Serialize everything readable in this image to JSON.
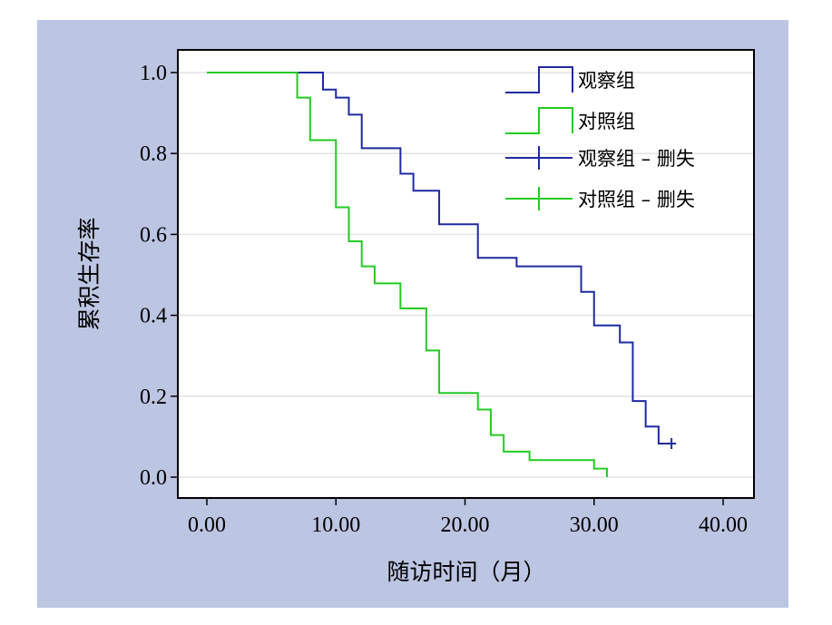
{
  "chart_data": {
    "type": "line",
    "subtype": "kaplan-meier",
    "title": "",
    "xlabel": "随访时间（月）",
    "ylabel": "累积生存率",
    "xlim": [
      0,
      40
    ],
    "ylim": [
      0,
      1
    ],
    "x_ticks": [
      "0.00",
      "10.00",
      "20.00",
      "30.00",
      "40.00"
    ],
    "y_ticks": [
      "0.0",
      "0.2",
      "0.4",
      "0.6",
      "0.8",
      "1.0"
    ],
    "grid": "horizontal",
    "legend_position": "top-right",
    "series": [
      {
        "name": "观察组",
        "color": "#1f2aa0",
        "steps": [
          [
            0,
            1.0
          ],
          [
            9,
            0.958
          ],
          [
            10,
            0.938
          ],
          [
            11,
            0.896
          ],
          [
            12,
            0.813
          ],
          [
            15,
            0.75
          ],
          [
            16,
            0.708
          ],
          [
            18,
            0.625
          ],
          [
            21,
            0.542
          ],
          [
            24,
            0.521
          ],
          [
            29,
            0.458
          ],
          [
            30,
            0.375
          ],
          [
            32,
            0.333
          ],
          [
            33,
            0.188
          ],
          [
            34,
            0.125
          ],
          [
            35,
            0.083
          ]
        ],
        "end_x": 36,
        "censored": [
          [
            36,
            0.083
          ]
        ]
      },
      {
        "name": "对照组",
        "color": "#22cc22",
        "steps": [
          [
            0,
            1.0
          ],
          [
            7,
            0.938
          ],
          [
            8,
            0.833
          ],
          [
            10,
            0.667
          ],
          [
            11,
            0.583
          ],
          [
            12,
            0.521
          ],
          [
            13,
            0.479
          ],
          [
            15,
            0.417
          ],
          [
            17,
            0.313
          ],
          [
            18,
            0.208
          ],
          [
            21,
            0.167
          ],
          [
            22,
            0.104
          ],
          [
            23,
            0.063
          ],
          [
            25,
            0.042
          ],
          [
            30,
            0.021
          ],
          [
            31,
            0.0
          ]
        ],
        "end_x": 31,
        "censored": []
      }
    ],
    "legend": [
      {
        "label": "观察组",
        "kind": "step",
        "color": "#1f2aa0"
      },
      {
        "label": "对照组",
        "kind": "step",
        "color": "#22cc22"
      },
      {
        "label": "观察组 – 删失",
        "kind": "censor",
        "color": "#1f2aa0"
      },
      {
        "label": "对照组 – 删失",
        "kind": "censor",
        "color": "#22cc22"
      }
    ]
  }
}
